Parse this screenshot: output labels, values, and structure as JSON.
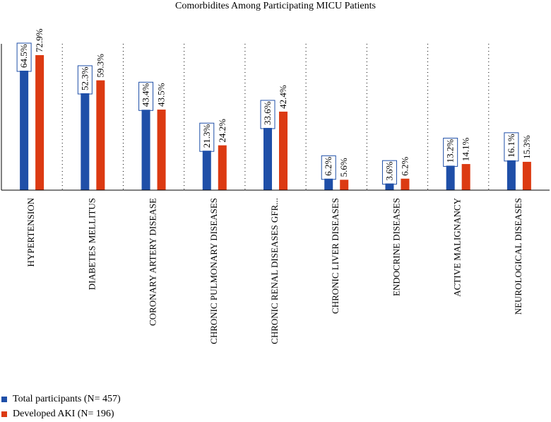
{
  "chart_data": {
    "type": "bar",
    "title": "Comorbidites Among Participating MICU Patients",
    "categories": [
      "HYPERTENSION",
      "DIABETES MELLITUS",
      "CORONARY ARTERY DISEASE",
      "CHRONIC PULMONARY DISEASES",
      "CHRONIC RENAL DISEASES GFR...",
      "CHRONIC LIVER DISEASES",
      "ENDOCRINE DISEASES",
      "ACTIVE MALIGNANCY",
      "NEUROLOGICAL DISEASES"
    ],
    "series": [
      {
        "name": "Total participants (N= 457)",
        "color": "#1f4fa8",
        "values": [
          64.5,
          52.3,
          43.4,
          21.3,
          33.6,
          6.2,
          3.6,
          13.2,
          16.1
        ],
        "labels": [
          "64.5%",
          "52.3%",
          "43.4%",
          "21.3%",
          "33.6%",
          "6.2%",
          "3.6%",
          "13.2%",
          "16.1%"
        ]
      },
      {
        "name": "Developed AKI (N= 196)",
        "color": "#dc3a12",
        "values": [
          72.9,
          59.3,
          43.5,
          24.2,
          42.4,
          5.6,
          6.2,
          14.1,
          15.3
        ],
        "labels": [
          "72.9%",
          "59.3%",
          "43.5%",
          "24.2%",
          "42.4%",
          "5.6%",
          "6.2%",
          "14.1%",
          "15.3%"
        ]
      }
    ],
    "ylim": [
      0,
      80
    ],
    "grid": "vertical-dotted-separators",
    "legend_position": "bottom-left"
  }
}
